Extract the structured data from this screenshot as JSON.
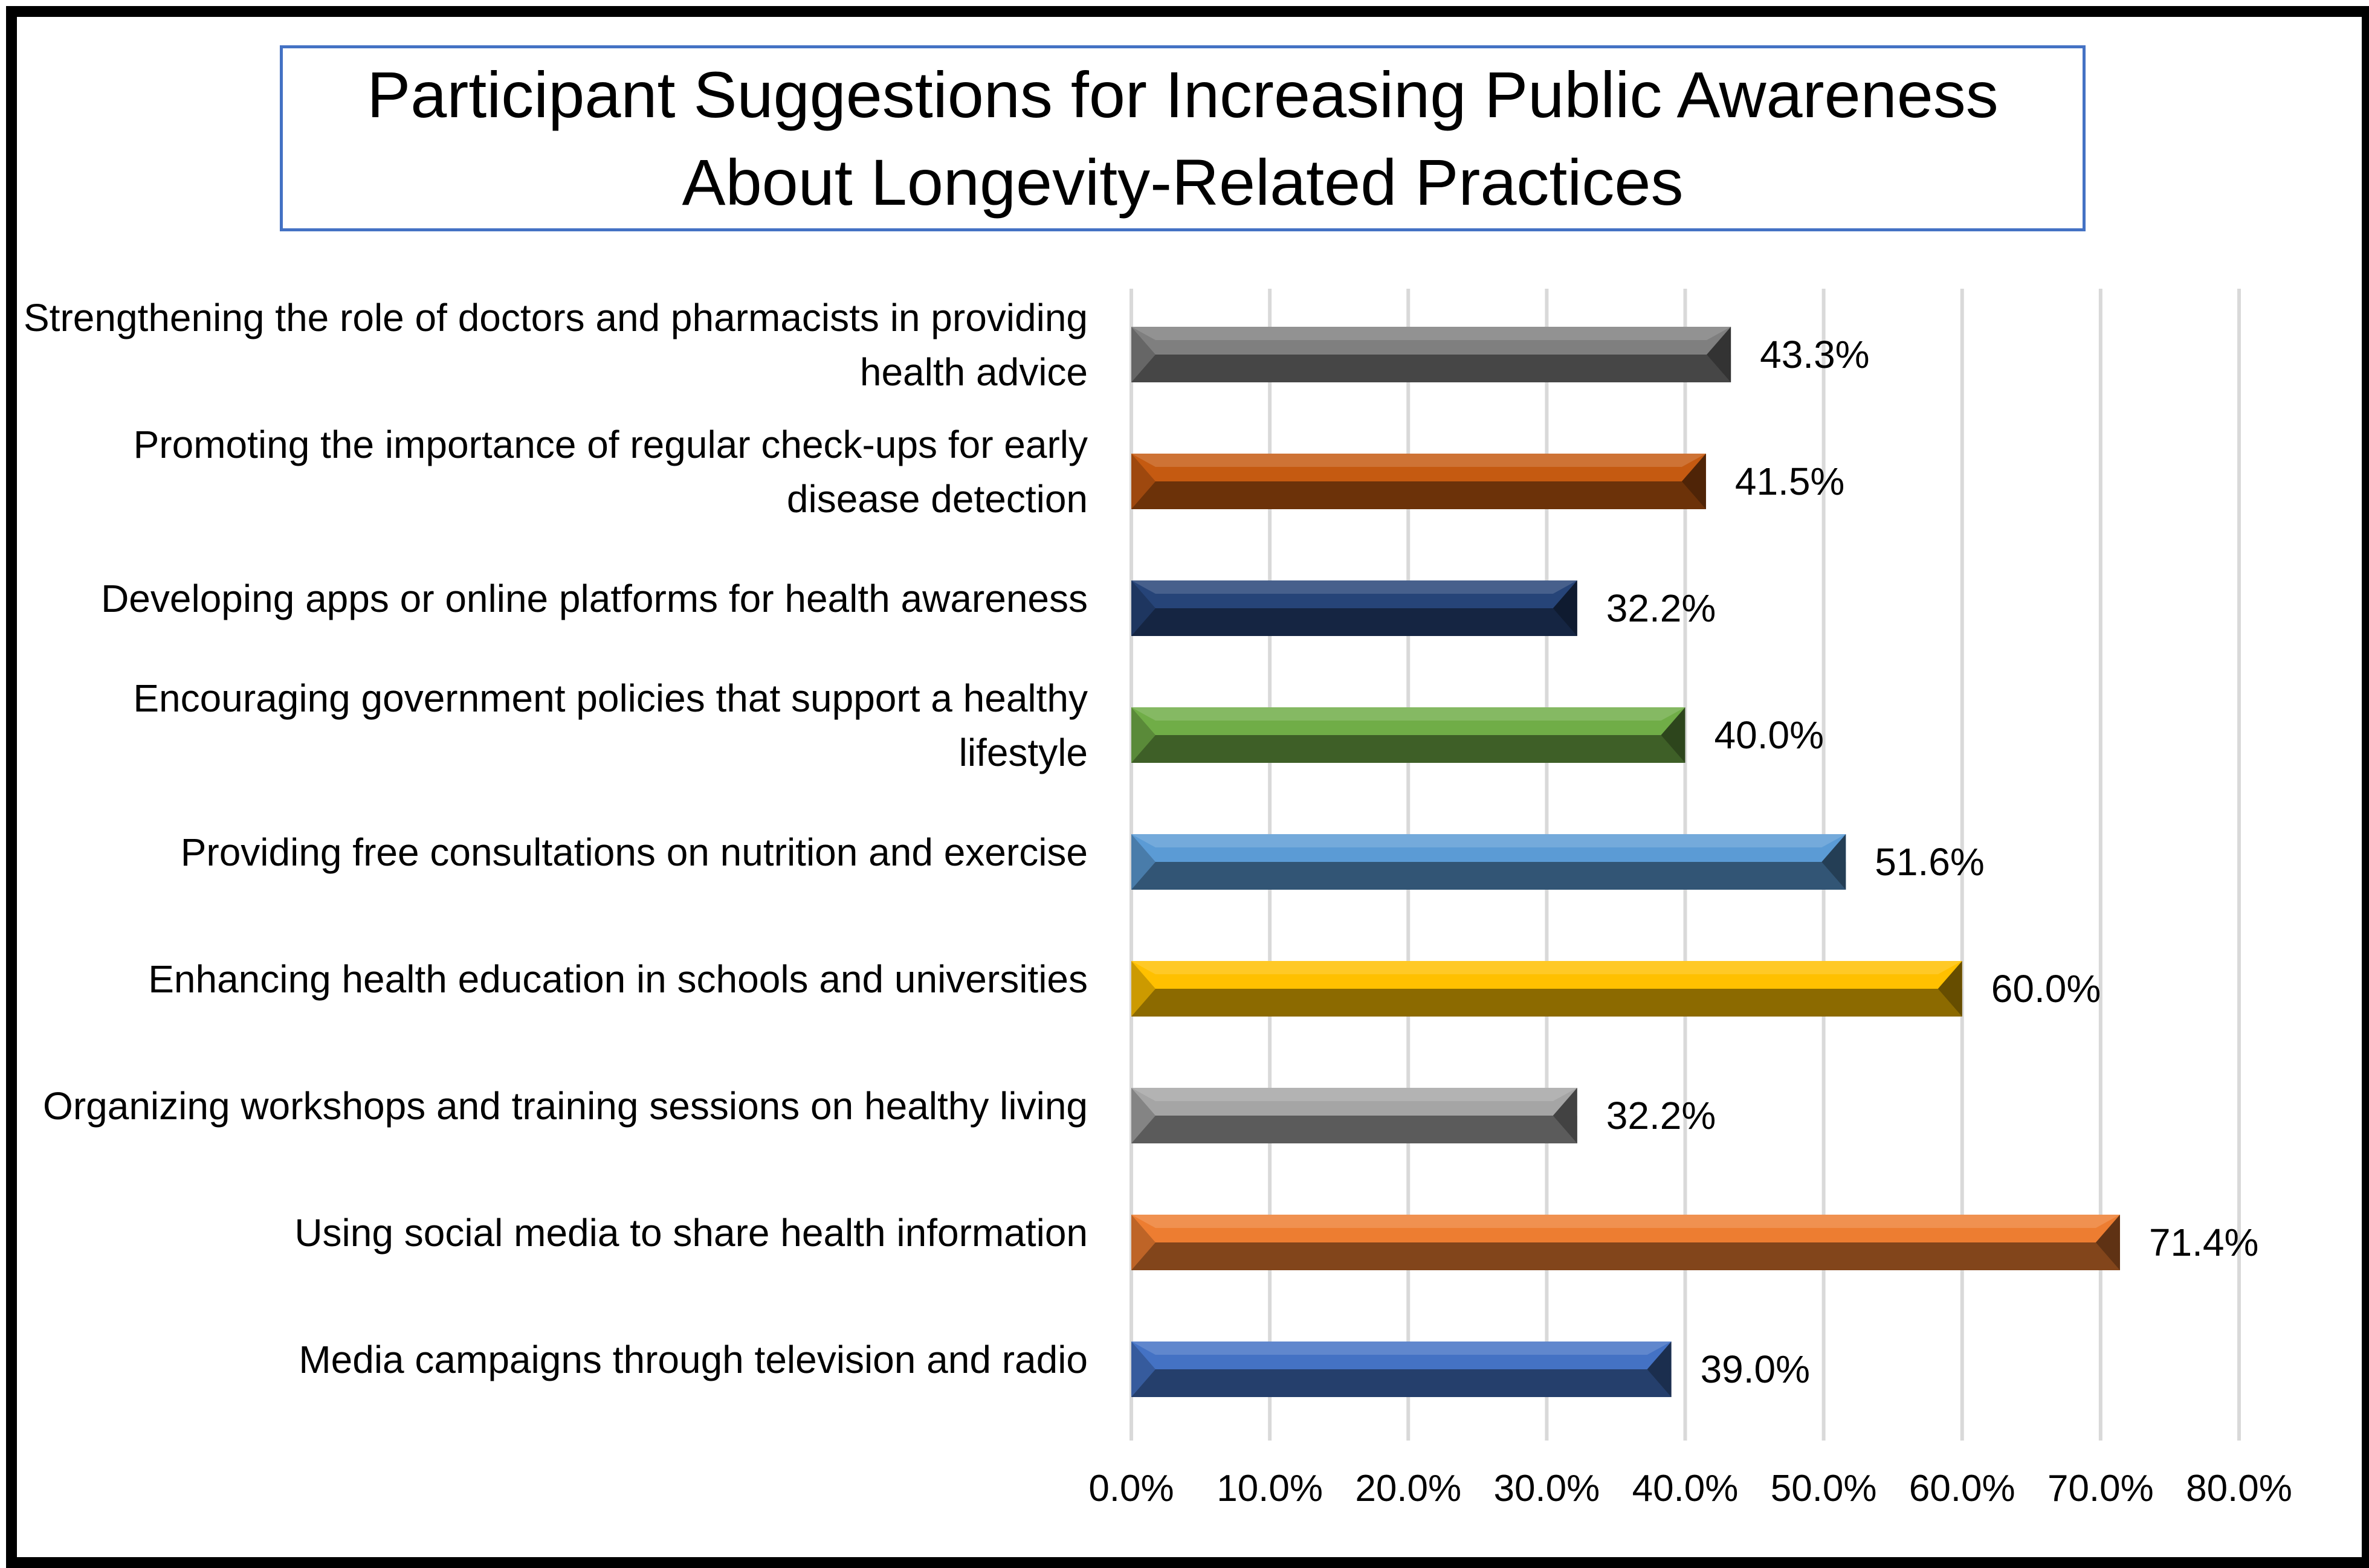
{
  "chart_data": {
    "type": "bar",
    "orientation": "horizontal",
    "title": "Participant Suggestions for Increasing Public Awareness About Longevity-Related Practices",
    "categories": [
      "Strengthening the role of doctors and pharmacists in providing health advice",
      "Promoting the importance of regular check-ups for early disease detection",
      "Developing apps or online platforms for health awareness",
      "Encouraging government policies that support a healthy lifestyle",
      "Providing free consultations on nutrition and exercise",
      "Enhancing health education in schools and universities",
      "Organizing workshops and training sessions on healthy living",
      "Using social media to share health information",
      "Media campaigns through television and radio"
    ],
    "values": [
      43.3,
      41.5,
      32.2,
      40.0,
      51.6,
      60.0,
      32.2,
      71.4,
      39.0
    ],
    "data_labels": [
      "43.3%",
      "41.5%",
      "32.2%",
      "40.0%",
      "51.6%",
      "60.0%",
      "32.2%",
      "71.4%",
      "39.0%"
    ],
    "colors": [
      "#7f7f7f",
      "#c55a11",
      "#264478",
      "#70ad47",
      "#5b9bd5",
      "#ffc000",
      "#a5a5a5",
      "#ed7d31",
      "#4472c4"
    ],
    "xlim": [
      0,
      80
    ],
    "xticks": [
      0,
      10,
      20,
      30,
      40,
      50,
      60,
      70,
      80
    ],
    "xtick_labels": [
      "0.0%",
      "10.0%",
      "20.0%",
      "30.0%",
      "40.0%",
      "50.0%",
      "60.0%",
      "70.0%",
      "80.0%"
    ],
    "xlabel": "",
    "ylabel": "",
    "grid": "vertical",
    "legend": "none"
  }
}
